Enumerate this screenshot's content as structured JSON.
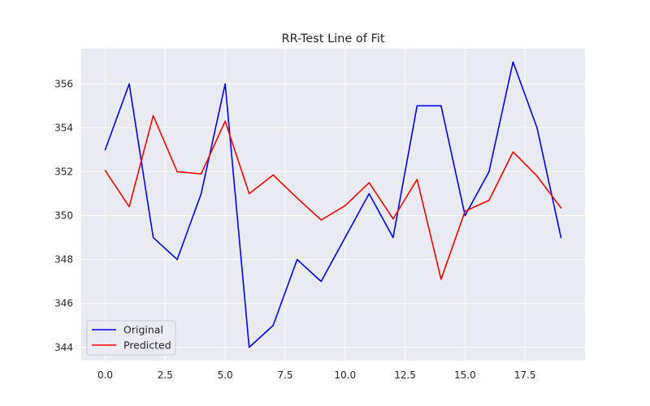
{
  "chart_data": {
    "type": "line",
    "title": "RR-Test Line of Fit",
    "xlabel": "",
    "ylabel": "",
    "x": [
      0,
      1,
      2,
      3,
      4,
      5,
      6,
      7,
      8,
      9,
      10,
      11,
      12,
      13,
      14,
      15,
      16,
      17,
      18,
      19
    ],
    "series": [
      {
        "name": "Original",
        "color": "#0000ff",
        "values": [
          353,
          356,
          349,
          348,
          351,
          356,
          344,
          345,
          348,
          347,
          349,
          351,
          349,
          355,
          355,
          350,
          352,
          357,
          354,
          349
        ]
      },
      {
        "name": "Predicted",
        "color": "#ff0000",
        "values": [
          352.05,
          350.4,
          354.55,
          352.0,
          351.9,
          354.3,
          351.0,
          351.85,
          350.8,
          349.8,
          350.45,
          351.5,
          349.85,
          351.65,
          347.1,
          350.2,
          350.7,
          352.9,
          351.8,
          350.35
        ]
      }
    ],
    "xlim": [
      -1.0,
      20.0
    ],
    "ylim": [
      343.4,
      357.6
    ],
    "xticks": [
      0,
      2.5,
      5,
      7.5,
      10,
      12.5,
      15,
      17.5
    ],
    "xtick_labels": [
      "0.0",
      "2.5",
      "5.0",
      "7.5",
      "10.0",
      "12.5",
      "15.0",
      "17.5"
    ],
    "yticks": [
      344,
      346,
      348,
      350,
      352,
      354,
      356
    ],
    "ytick_labels": [
      "344",
      "346",
      "348",
      "350",
      "352",
      "354",
      "356"
    ],
    "grid": true,
    "legend_position": "lower-left",
    "background_color": "#eaeaf2",
    "grid_color": "#ffffff"
  }
}
